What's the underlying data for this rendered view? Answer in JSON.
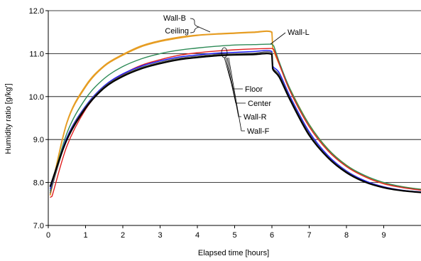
{
  "chart_data": {
    "type": "line",
    "title": "",
    "xlabel": "Elapsed time [hours]",
    "ylabel": "Humidity ratio [g/kg']",
    "xlim": [
      0,
      10
    ],
    "ylim": [
      7.0,
      12.0
    ],
    "x_ticks": [
      "0",
      "1",
      "2",
      "3",
      "4",
      "5",
      "6",
      "7",
      "8",
      "9"
    ],
    "y_ticks": [
      "7.0",
      "8.0",
      "9.0",
      "10.0",
      "11.0",
      "12.0"
    ],
    "grid": "horizontal",
    "legend": "none (callout annotations)",
    "series": [
      {
        "name": "Wall-B",
        "color": "#e69d23",
        "points": [
          [
            0.05,
            7.7
          ],
          [
            0.5,
            9.4
          ],
          [
            1,
            10.25
          ],
          [
            1.5,
            10.72
          ],
          [
            2,
            10.98
          ],
          [
            2.5,
            11.18
          ],
          [
            3,
            11.3
          ],
          [
            3.5,
            11.38
          ],
          [
            4,
            11.43
          ],
          [
            4.5,
            11.46
          ],
          [
            5,
            11.48
          ],
          [
            5.5,
            11.5
          ],
          [
            6,
            11.5
          ],
          [
            6.02,
            11.15
          ],
          [
            6.2,
            10.75
          ],
          [
            6.5,
            10.15
          ],
          [
            7,
            9.35
          ],
          [
            7.5,
            8.78
          ],
          [
            8,
            8.4
          ],
          [
            8.5,
            8.15
          ],
          [
            9,
            7.99
          ],
          [
            9.5,
            7.9
          ],
          [
            10,
            7.84
          ]
        ]
      },
      {
        "name": "Ceiling",
        "color": "#e69d23",
        "points": [
          [
            0.05,
            7.7
          ],
          [
            0.5,
            9.38
          ],
          [
            1,
            10.22
          ],
          [
            1.5,
            10.7
          ],
          [
            2,
            10.96
          ],
          [
            2.5,
            11.16
          ],
          [
            3,
            11.28
          ],
          [
            3.5,
            11.36
          ],
          [
            4,
            11.42
          ],
          [
            4.5,
            11.45
          ],
          [
            5,
            11.47
          ],
          [
            5.5,
            11.49
          ],
          [
            6,
            11.49
          ],
          [
            6.02,
            11.14
          ],
          [
            6.2,
            10.74
          ],
          [
            6.5,
            10.14
          ],
          [
            7,
            9.34
          ],
          [
            7.5,
            8.77
          ],
          [
            8,
            8.39
          ],
          [
            8.5,
            8.14
          ],
          [
            9,
            7.98
          ],
          [
            9.5,
            7.89
          ],
          [
            10,
            7.83
          ]
        ]
      },
      {
        "name": "Wall-L",
        "color": "#2e8b57",
        "points": [
          [
            0.05,
            7.8
          ],
          [
            0.5,
            9.15
          ],
          [
            1,
            9.95
          ],
          [
            1.5,
            10.42
          ],
          [
            2,
            10.7
          ],
          [
            2.5,
            10.88
          ],
          [
            3,
            11.0
          ],
          [
            3.5,
            11.08
          ],
          [
            4,
            11.13
          ],
          [
            4.5,
            11.17
          ],
          [
            5,
            11.2
          ],
          [
            5.5,
            11.21
          ],
          [
            6,
            11.22
          ],
          [
            6.05,
            11.18
          ],
          [
            6.2,
            10.8
          ],
          [
            6.5,
            10.15
          ],
          [
            7,
            9.35
          ],
          [
            7.5,
            8.78
          ],
          [
            8,
            8.4
          ],
          [
            8.5,
            8.16
          ],
          [
            9,
            8.0
          ],
          [
            9.5,
            7.9
          ],
          [
            10,
            7.84
          ]
        ]
      },
      {
        "name": "Floor",
        "color": "#000000",
        "points": [
          [
            0.05,
            7.9
          ],
          [
            0.5,
            9.0
          ],
          [
            1,
            9.73
          ],
          [
            1.5,
            10.2
          ],
          [
            2,
            10.47
          ],
          [
            2.5,
            10.65
          ],
          [
            3,
            10.77
          ],
          [
            3.5,
            10.86
          ],
          [
            4,
            10.91
          ],
          [
            4.5,
            10.95
          ],
          [
            5,
            10.97
          ],
          [
            5.5,
            10.98
          ],
          [
            6,
            10.98
          ],
          [
            6.02,
            10.65
          ],
          [
            6.2,
            10.45
          ],
          [
            6.5,
            9.9
          ],
          [
            7,
            9.1
          ],
          [
            7.5,
            8.58
          ],
          [
            8,
            8.23
          ],
          [
            8.5,
            8.01
          ],
          [
            9,
            7.88
          ],
          [
            9.5,
            7.81
          ],
          [
            10,
            7.77
          ]
        ]
      },
      {
        "name": "Center",
        "color": "#1a1aff",
        "points": [
          [
            0.05,
            7.85
          ],
          [
            0.5,
            9.05
          ],
          [
            1,
            9.78
          ],
          [
            1.5,
            10.25
          ],
          [
            2,
            10.53
          ],
          [
            2.5,
            10.71
          ],
          [
            3,
            10.83
          ],
          [
            3.5,
            10.92
          ],
          [
            4,
            10.97
          ],
          [
            4.5,
            11.01
          ],
          [
            5,
            11.03
          ],
          [
            5.5,
            11.05
          ],
          [
            6,
            11.05
          ],
          [
            6.02,
            10.72
          ],
          [
            6.2,
            10.55
          ],
          [
            6.5,
            9.98
          ],
          [
            7,
            9.18
          ],
          [
            7.5,
            8.63
          ],
          [
            8,
            8.27
          ],
          [
            8.5,
            8.04
          ],
          [
            9,
            7.9
          ],
          [
            9.5,
            7.82
          ],
          [
            10,
            7.78
          ]
        ]
      },
      {
        "name": "Wall-R",
        "color": "#e02020",
        "points": [
          [
            0.05,
            7.65
          ],
          [
            0.1,
            7.68
          ],
          [
            0.5,
            8.85
          ],
          [
            1,
            9.7
          ],
          [
            1.5,
            10.22
          ],
          [
            2,
            10.52
          ],
          [
            2.5,
            10.73
          ],
          [
            3,
            10.86
          ],
          [
            3.5,
            10.96
          ],
          [
            4,
            11.02
          ],
          [
            4.5,
            11.06
          ],
          [
            5,
            11.09
          ],
          [
            5.5,
            11.11
          ],
          [
            6,
            11.12
          ],
          [
            6.05,
            11.1
          ],
          [
            6.2,
            10.75
          ],
          [
            6.5,
            10.1
          ],
          [
            7,
            9.3
          ],
          [
            7.5,
            8.74
          ],
          [
            8,
            8.37
          ],
          [
            8.5,
            8.13
          ],
          [
            9,
            7.97
          ],
          [
            9.5,
            7.88
          ],
          [
            10,
            7.82
          ]
        ]
      },
      {
        "name": "Wall-F",
        "color": "#555555",
        "points": [
          [
            0.05,
            7.75
          ],
          [
            0.5,
            9.02
          ],
          [
            1,
            9.76
          ],
          [
            1.5,
            10.23
          ],
          [
            2,
            10.5
          ],
          [
            2.5,
            10.68
          ],
          [
            3,
            10.8
          ],
          [
            3.5,
            10.89
          ],
          [
            4,
            10.94
          ],
          [
            4.5,
            10.98
          ],
          [
            5,
            11.0
          ],
          [
            5.5,
            11.01
          ],
          [
            6,
            11.02
          ],
          [
            6.02,
            10.68
          ],
          [
            6.2,
            10.5
          ],
          [
            6.5,
            9.94
          ],
          [
            7,
            9.14
          ],
          [
            7.5,
            8.6
          ],
          [
            8,
            8.25
          ],
          [
            8.5,
            8.02
          ],
          [
            9,
            7.89
          ],
          [
            9.5,
            7.815
          ],
          [
            10,
            7.775
          ]
        ]
      }
    ],
    "annotations": [
      "Wall-B",
      "Ceiling",
      "Wall-L",
      "Floor",
      "Center",
      "Wall-R",
      "Wall-F"
    ]
  }
}
